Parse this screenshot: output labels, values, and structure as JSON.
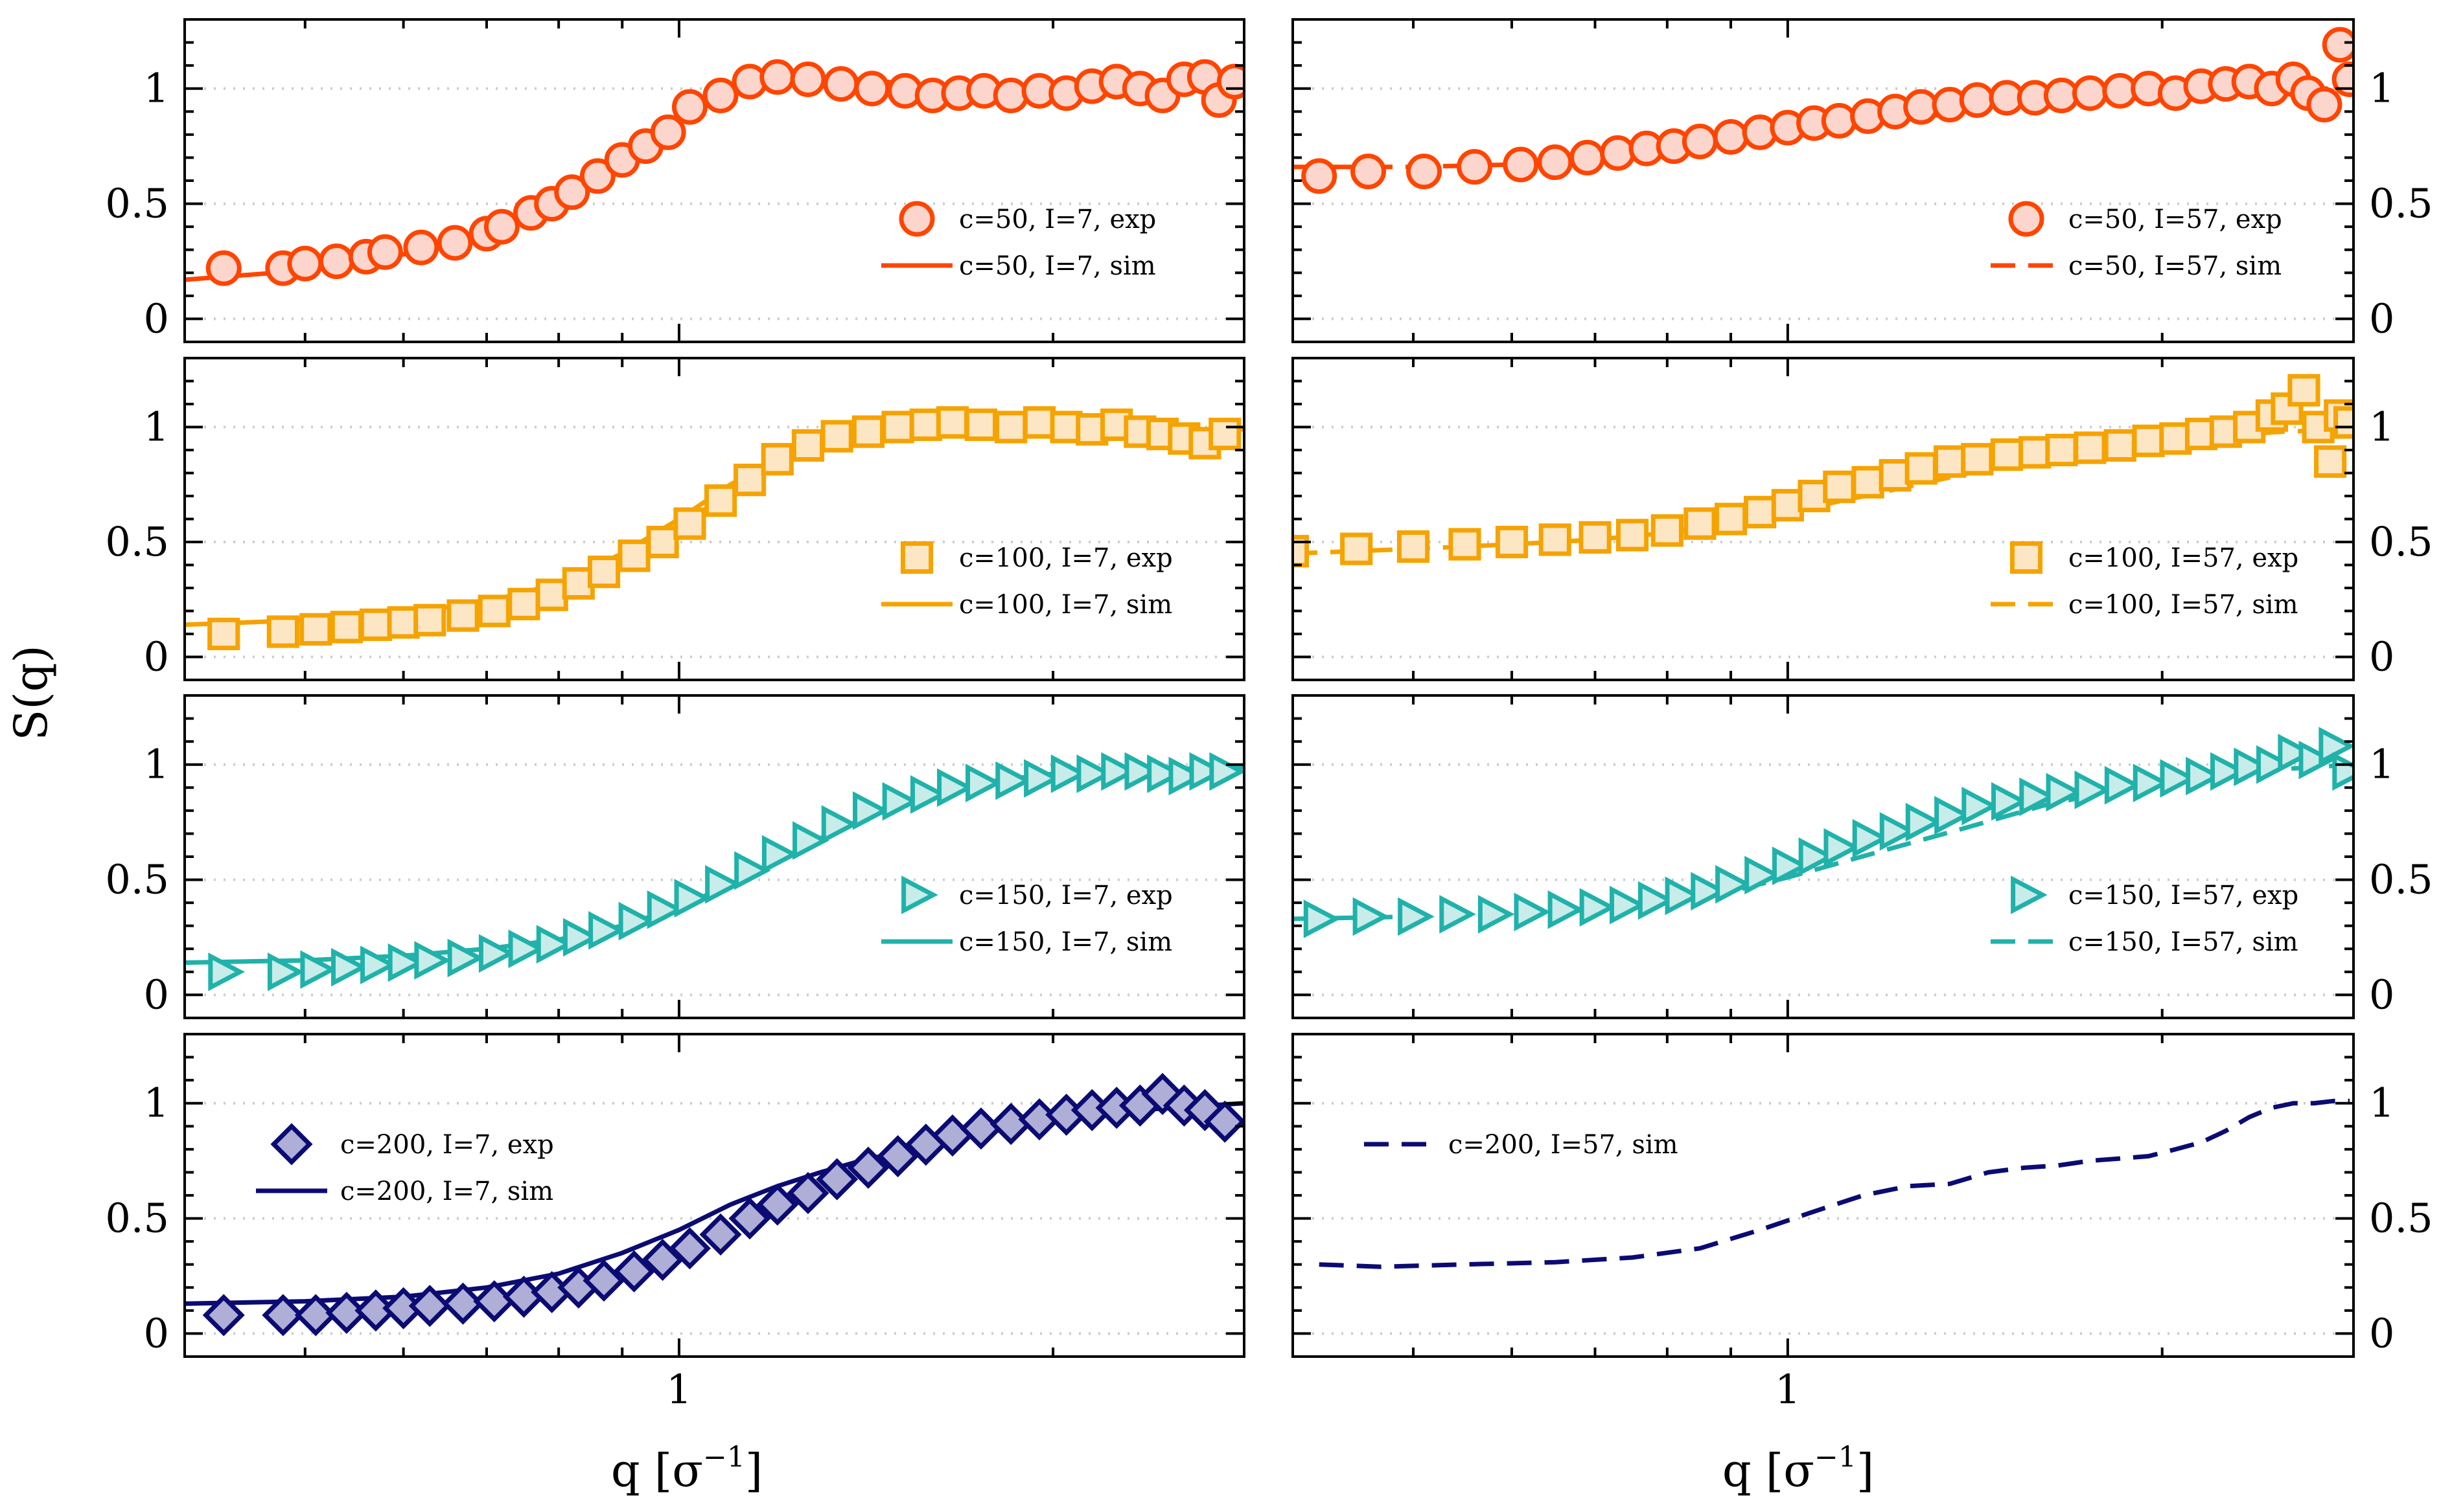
{
  "figure": {
    "ylabel": "S(q)",
    "xlabel_left": "q [σ",
    "xlabel_right": "q [σ",
    "xlabel_sup": "−1",
    "xlabel_close": "]",
    "x_tick_label": "1"
  },
  "colors": {
    "c50": "#ff4500",
    "c50_fill": "#fcd6cc",
    "c100": "#f5a300",
    "c100_fill": "#fde6c4",
    "c150": "#20b2aa",
    "c150_fill": "#c8ece9",
    "c200": "#0b0b73",
    "c200_fill": "#aeaed6",
    "frame": "#000000",
    "grid": "#cccccc"
  },
  "chart_data": [
    {
      "type": "scatter",
      "panel": "c50-I7",
      "row": 0,
      "col": 0,
      "xscale": "log",
      "xlim": [
        0.4,
        2.85
      ],
      "ylim": [
        -0.1,
        1.3
      ],
      "yticks": [
        0,
        0.5,
        1
      ],
      "ytick_labels": [
        "0",
        "0.5",
        "1"
      ],
      "ytick_side": "left",
      "color_key": "c50",
      "marker": "circle",
      "line_style": "solid",
      "legend_loc": "lower-right",
      "legend": {
        "exp": "c=50, I=7, exp",
        "sim": "c=50, I=7, sim"
      },
      "exp": {
        "x": [
          0.43,
          0.48,
          0.5,
          0.53,
          0.56,
          0.58,
          0.62,
          0.66,
          0.7,
          0.72,
          0.76,
          0.79,
          0.82,
          0.86,
          0.9,
          0.94,
          0.98,
          1.02,
          1.08,
          1.14,
          1.2,
          1.27,
          1.35,
          1.43,
          1.52,
          1.6,
          1.68,
          1.76,
          1.85,
          1.95,
          2.05,
          2.15,
          2.25,
          2.35,
          2.45,
          2.55,
          2.65,
          2.72,
          2.8
        ],
        "y": [
          0.22,
          0.22,
          0.24,
          0.25,
          0.27,
          0.29,
          0.31,
          0.33,
          0.37,
          0.4,
          0.46,
          0.5,
          0.55,
          0.62,
          0.69,
          0.75,
          0.81,
          0.92,
          0.97,
          1.03,
          1.05,
          1.04,
          1.02,
          1.0,
          0.99,
          0.97,
          0.98,
          0.99,
          0.97,
          0.99,
          0.98,
          1.01,
          1.03,
          1.0,
          0.97,
          1.04,
          1.05,
          0.95,
          1.03
        ]
      },
      "sim": {
        "x": [
          0.4,
          0.5,
          0.6,
          0.7,
          0.8,
          0.9,
          1.0,
          1.1,
          1.2,
          1.3,
          1.4,
          1.6,
          1.8,
          2.0,
          2.2,
          2.5,
          2.85
        ],
        "y": [
          0.17,
          0.21,
          0.28,
          0.37,
          0.53,
          0.7,
          0.86,
          0.98,
          1.04,
          1.05,
          1.04,
          1.01,
          0.99,
          0.99,
          1.0,
          1.0,
          1.0
        ]
      }
    },
    {
      "type": "scatter",
      "panel": "c50-I57",
      "row": 0,
      "col": 1,
      "xscale": "log",
      "xlim": [
        0.4,
        2.85
      ],
      "ylim": [
        -0.1,
        1.3
      ],
      "yticks": [
        0,
        0.5,
        1
      ],
      "ytick_labels": [
        "0",
        "0.5",
        "1"
      ],
      "ytick_side": "right",
      "color_key": "c50",
      "marker": "circle",
      "line_style": "dashed",
      "legend_loc": "lower-right",
      "legend": {
        "exp": "c=50, I=57, exp",
        "sim": "c=50, I=57, sim"
      },
      "exp": {
        "x": [
          0.42,
          0.46,
          0.51,
          0.56,
          0.61,
          0.65,
          0.69,
          0.73,
          0.77,
          0.81,
          0.85,
          0.9,
          0.95,
          1.0,
          1.05,
          1.1,
          1.16,
          1.22,
          1.28,
          1.35,
          1.42,
          1.5,
          1.58,
          1.66,
          1.75,
          1.85,
          1.95,
          2.05,
          2.15,
          2.25,
          2.35,
          2.45,
          2.55,
          2.62,
          2.7,
          2.78,
          2.83
        ],
        "y": [
          0.62,
          0.64,
          0.64,
          0.66,
          0.67,
          0.68,
          0.7,
          0.72,
          0.74,
          0.75,
          0.77,
          0.79,
          0.81,
          0.83,
          0.85,
          0.86,
          0.88,
          0.9,
          0.92,
          0.93,
          0.95,
          0.96,
          0.96,
          0.97,
          0.98,
          0.99,
          1.0,
          0.98,
          1.01,
          1.02,
          1.03,
          1.0,
          1.04,
          0.98,
          0.93,
          1.19,
          1.04
        ]
      },
      "sim": {
        "x": [
          0.4,
          0.5,
          0.6,
          0.7,
          0.8,
          0.9,
          1.0,
          1.2,
          1.4,
          1.6,
          1.8,
          2.0,
          2.2,
          2.5,
          2.85
        ],
        "y": [
          0.66,
          0.66,
          0.67,
          0.69,
          0.72,
          0.76,
          0.8,
          0.86,
          0.9,
          0.94,
          0.96,
          0.98,
          0.99,
          1.0,
          1.0
        ]
      }
    },
    {
      "type": "scatter",
      "panel": "c100-I7",
      "row": 1,
      "col": 0,
      "xscale": "log",
      "xlim": [
        0.4,
        2.85
      ],
      "ylim": [
        -0.1,
        1.3
      ],
      "yticks": [
        0,
        0.5,
        1
      ],
      "ytick_labels": [
        "0",
        "0.5",
        "1"
      ],
      "ytick_side": "left",
      "color_key": "c100",
      "marker": "square",
      "line_style": "solid",
      "legend_loc": "lower-right",
      "legend": {
        "exp": "c=100, I=7, exp",
        "sim": "c=100, I=7, sim"
      },
      "exp": {
        "x": [
          0.43,
          0.48,
          0.51,
          0.54,
          0.57,
          0.6,
          0.63,
          0.67,
          0.71,
          0.75,
          0.79,
          0.83,
          0.87,
          0.92,
          0.97,
          1.02,
          1.08,
          1.14,
          1.2,
          1.27,
          1.34,
          1.42,
          1.5,
          1.58,
          1.66,
          1.75,
          1.85,
          1.95,
          2.05,
          2.15,
          2.25,
          2.35,
          2.45,
          2.55,
          2.65,
          2.75
        ],
        "y": [
          0.1,
          0.11,
          0.12,
          0.13,
          0.14,
          0.15,
          0.16,
          0.18,
          0.2,
          0.23,
          0.27,
          0.32,
          0.37,
          0.44,
          0.5,
          0.58,
          0.68,
          0.77,
          0.86,
          0.92,
          0.96,
          0.98,
          1.0,
          1.01,
          1.02,
          1.01,
          1.0,
          1.02,
          1.0,
          0.99,
          1.01,
          0.98,
          0.97,
          0.95,
          0.93,
          0.97
        ]
      },
      "sim": {
        "x": [
          0.4,
          0.5,
          0.6,
          0.7,
          0.8,
          0.9,
          1.0,
          1.1,
          1.2,
          1.3,
          1.4,
          1.6,
          1.8,
          2.0,
          2.2,
          2.5,
          2.85
        ],
        "y": [
          0.14,
          0.16,
          0.19,
          0.24,
          0.32,
          0.45,
          0.6,
          0.75,
          0.86,
          0.93,
          0.97,
          0.99,
          0.99,
          0.99,
          0.99,
          0.99,
          0.99
        ]
      }
    },
    {
      "type": "scatter",
      "panel": "c100-I57",
      "row": 1,
      "col": 1,
      "xscale": "log",
      "xlim": [
        0.4,
        2.85
      ],
      "ylim": [
        -0.1,
        1.3
      ],
      "yticks": [
        0,
        0.5,
        1
      ],
      "ytick_labels": [
        "0",
        "0.5",
        "1"
      ],
      "ytick_side": "right",
      "color_key": "c100",
      "marker": "square",
      "line_style": "dashed",
      "legend_loc": "lower-right",
      "legend": {
        "exp": "c=100, I=57, exp",
        "sim": "c=100, I=57, sim"
      },
      "exp": {
        "x": [
          0.4,
          0.45,
          0.5,
          0.55,
          0.6,
          0.65,
          0.7,
          0.75,
          0.8,
          0.85,
          0.9,
          0.95,
          1.0,
          1.05,
          1.1,
          1.16,
          1.22,
          1.28,
          1.35,
          1.42,
          1.5,
          1.58,
          1.66,
          1.75,
          1.85,
          1.95,
          2.05,
          2.15,
          2.25,
          2.35,
          2.45,
          2.52,
          2.6,
          2.67,
          2.73,
          2.78,
          2.83
        ],
        "y": [
          0.46,
          0.47,
          0.48,
          0.49,
          0.5,
          0.51,
          0.52,
          0.53,
          0.55,
          0.58,
          0.6,
          0.63,
          0.66,
          0.7,
          0.74,
          0.76,
          0.79,
          0.82,
          0.85,
          0.86,
          0.88,
          0.89,
          0.9,
          0.91,
          0.92,
          0.94,
          0.95,
          0.97,
          0.98,
          1.0,
          1.05,
          1.08,
          1.16,
          1.0,
          0.85,
          1.05,
          1.02
        ]
      },
      "sim": {
        "x": [
          0.4,
          0.5,
          0.6,
          0.7,
          0.8,
          0.9,
          1.0,
          1.2,
          1.4,
          1.6,
          1.8,
          2.0,
          2.2,
          2.5,
          2.85
        ],
        "y": [
          0.45,
          0.47,
          0.49,
          0.51,
          0.54,
          0.58,
          0.63,
          0.72,
          0.8,
          0.87,
          0.91,
          0.94,
          0.96,
          0.98,
          0.99
        ]
      }
    },
    {
      "type": "scatter",
      "panel": "c150-I7",
      "row": 2,
      "col": 0,
      "xscale": "log",
      "xlim": [
        0.4,
        2.85
      ],
      "ylim": [
        -0.1,
        1.3
      ],
      "yticks": [
        0,
        0.5,
        1
      ],
      "ytick_labels": [
        "0",
        "0.5",
        "1"
      ],
      "ytick_side": "left",
      "color_key": "c150",
      "marker": "triangle-right",
      "line_style": "solid",
      "legend_loc": "lower-right",
      "legend": {
        "exp": "c=150, I=7, exp",
        "sim": "c=150, I=7, sim"
      },
      "exp": {
        "x": [
          0.43,
          0.48,
          0.51,
          0.54,
          0.57,
          0.6,
          0.63,
          0.67,
          0.71,
          0.75,
          0.79,
          0.83,
          0.87,
          0.92,
          0.97,
          1.02,
          1.08,
          1.14,
          1.2,
          1.27,
          1.34,
          1.42,
          1.5,
          1.58,
          1.66,
          1.75,
          1.85,
          1.95,
          2.05,
          2.15,
          2.25,
          2.35,
          2.45,
          2.55,
          2.65,
          2.75
        ],
        "y": [
          0.1,
          0.1,
          0.11,
          0.12,
          0.13,
          0.14,
          0.15,
          0.16,
          0.18,
          0.2,
          0.22,
          0.25,
          0.28,
          0.32,
          0.37,
          0.42,
          0.48,
          0.54,
          0.61,
          0.67,
          0.74,
          0.8,
          0.84,
          0.87,
          0.9,
          0.92,
          0.93,
          0.94,
          0.96,
          0.96,
          0.97,
          0.97,
          0.96,
          0.95,
          0.97,
          0.97
        ]
      },
      "sim": {
        "x": [
          0.4,
          0.5,
          0.6,
          0.7,
          0.8,
          0.9,
          1.0,
          1.1,
          1.2,
          1.3,
          1.4,
          1.6,
          1.8,
          2.0,
          2.2,
          2.5,
          2.85
        ],
        "y": [
          0.14,
          0.15,
          0.17,
          0.2,
          0.24,
          0.3,
          0.38,
          0.48,
          0.58,
          0.68,
          0.76,
          0.87,
          0.93,
          0.96,
          0.97,
          0.98,
          0.99
        ]
      }
    },
    {
      "type": "scatter",
      "panel": "c150-I57",
      "row": 2,
      "col": 1,
      "xscale": "log",
      "xlim": [
        0.4,
        2.85
      ],
      "ylim": [
        -0.1,
        1.3
      ],
      "yticks": [
        0,
        0.5,
        1
      ],
      "ytick_labels": [
        "0",
        "0.5",
        "1"
      ],
      "ytick_side": "right",
      "color_key": "c150",
      "marker": "triangle-right",
      "line_style": "dashed",
      "legend_loc": "lower-right",
      "legend": {
        "exp": "c=150, I=57, exp",
        "sim": "c=150, I=57, sim"
      },
      "exp": {
        "x": [
          0.42,
          0.46,
          0.5,
          0.54,
          0.58,
          0.62,
          0.66,
          0.7,
          0.74,
          0.78,
          0.82,
          0.86,
          0.9,
          0.95,
          1.0,
          1.05,
          1.1,
          1.16,
          1.22,
          1.28,
          1.35,
          1.42,
          1.5,
          1.58,
          1.66,
          1.75,
          1.85,
          1.95,
          2.05,
          2.15,
          2.25,
          2.35,
          2.45,
          2.55,
          2.65,
          2.75,
          2.82
        ],
        "y": [
          0.33,
          0.34,
          0.34,
          0.35,
          0.35,
          0.36,
          0.37,
          0.38,
          0.39,
          0.41,
          0.43,
          0.45,
          0.48,
          0.52,
          0.56,
          0.6,
          0.64,
          0.68,
          0.71,
          0.75,
          0.78,
          0.82,
          0.84,
          0.86,
          0.88,
          0.89,
          0.91,
          0.92,
          0.94,
          0.95,
          0.97,
          0.99,
          1.0,
          1.05,
          1.02,
          1.08,
          0.97
        ]
      },
      "sim": {
        "x": [
          0.4,
          0.5,
          0.6,
          0.7,
          0.8,
          0.9,
          1.0,
          1.2,
          1.4,
          1.6,
          1.8,
          2.0,
          2.2,
          2.5,
          2.85
        ],
        "y": [
          0.33,
          0.34,
          0.35,
          0.37,
          0.4,
          0.45,
          0.51,
          0.63,
          0.73,
          0.82,
          0.88,
          0.92,
          0.95,
          0.98,
          1.0
        ]
      }
    },
    {
      "type": "scatter",
      "panel": "c200-I7",
      "row": 3,
      "col": 0,
      "xscale": "log",
      "xlim": [
        0.4,
        2.85
      ],
      "ylim": [
        -0.1,
        1.3
      ],
      "yticks": [
        0,
        0.5,
        1
      ],
      "ytick_labels": [
        "0",
        "0.5",
        "1"
      ],
      "ytick_side": "left",
      "color_key": "c200",
      "marker": "diamond",
      "line_style": "solid",
      "legend_loc": "upper-left",
      "legend": {
        "exp": "c=200, I=7, exp",
        "sim": "c=200, I=7, sim"
      },
      "exp": {
        "x": [
          0.43,
          0.48,
          0.51,
          0.54,
          0.57,
          0.6,
          0.63,
          0.67,
          0.71,
          0.75,
          0.79,
          0.83,
          0.87,
          0.92,
          0.97,
          1.02,
          1.08,
          1.14,
          1.2,
          1.27,
          1.34,
          1.42,
          1.5,
          1.58,
          1.66,
          1.75,
          1.85,
          1.95,
          2.05,
          2.15,
          2.25,
          2.35,
          2.45,
          2.55,
          2.65,
          2.75
        ],
        "y": [
          0.08,
          0.08,
          0.08,
          0.09,
          0.1,
          0.11,
          0.12,
          0.13,
          0.14,
          0.16,
          0.18,
          0.2,
          0.23,
          0.27,
          0.32,
          0.37,
          0.43,
          0.5,
          0.56,
          0.61,
          0.67,
          0.72,
          0.77,
          0.82,
          0.86,
          0.89,
          0.91,
          0.93,
          0.95,
          0.97,
          0.98,
          0.99,
          1.04,
          0.99,
          0.97,
          0.92
        ]
      },
      "sim": {
        "x": [
          0.4,
          0.5,
          0.6,
          0.7,
          0.8,
          0.9,
          1.0,
          1.1,
          1.2,
          1.3,
          1.4,
          1.6,
          1.8,
          2.0,
          2.2,
          2.5,
          2.85
        ],
        "y": [
          0.13,
          0.14,
          0.16,
          0.2,
          0.26,
          0.35,
          0.45,
          0.56,
          0.64,
          0.7,
          0.75,
          0.82,
          0.88,
          0.93,
          0.96,
          0.98,
          1.0
        ]
      }
    },
    {
      "type": "line",
      "panel": "c200-I57",
      "row": 3,
      "col": 1,
      "xscale": "log",
      "xlim": [
        0.4,
        2.85
      ],
      "ylim": [
        -0.1,
        1.3
      ],
      "yticks": [
        0,
        0.5,
        1
      ],
      "ytick_labels": [
        "0",
        "0.5",
        "1"
      ],
      "ytick_side": "right",
      "color_key": "c200",
      "marker": "none",
      "line_style": "dashed",
      "legend_loc": "upper-left",
      "legend": {
        "sim": "c=200, I=57, sim"
      },
      "exp": null,
      "sim": {
        "x": [
          0.42,
          0.47,
          0.55,
          0.65,
          0.75,
          0.85,
          0.95,
          1.05,
          1.15,
          1.25,
          1.35,
          1.45,
          1.55,
          1.65,
          1.75,
          1.85,
          1.95,
          2.05,
          2.15,
          2.25,
          2.35,
          2.45,
          2.55,
          2.65,
          2.75,
          2.83
        ],
        "y": [
          0.3,
          0.29,
          0.3,
          0.31,
          0.33,
          0.37,
          0.45,
          0.53,
          0.6,
          0.64,
          0.65,
          0.7,
          0.72,
          0.73,
          0.75,
          0.76,
          0.77,
          0.8,
          0.83,
          0.88,
          0.94,
          0.98,
          1.0,
          1.0,
          1.01,
          1.01
        ]
      }
    }
  ]
}
